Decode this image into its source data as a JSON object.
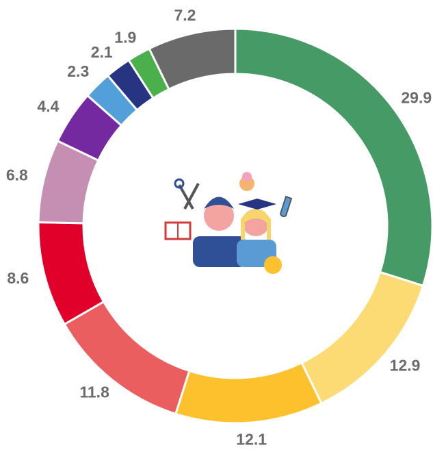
{
  "chart_data": {
    "type": "donut",
    "categories": [
      null,
      null,
      null,
      null,
      null,
      null,
      null,
      null,
      null,
      null,
      null
    ],
    "values": [
      29.9,
      12.9,
      12.1,
      11.8,
      8.6,
      6.8,
      4.4,
      2.3,
      2.1,
      1.9,
      7.2
    ],
    "colors": [
      "#469a65",
      "#fcda74",
      "#fdc12e",
      "#eb5e60",
      "#e1002a",
      "#c48fb2",
      "#7529a0",
      "#529fd9",
      "#263482",
      "#4baf4c",
      "#6a6a6a"
    ]
  }
}
